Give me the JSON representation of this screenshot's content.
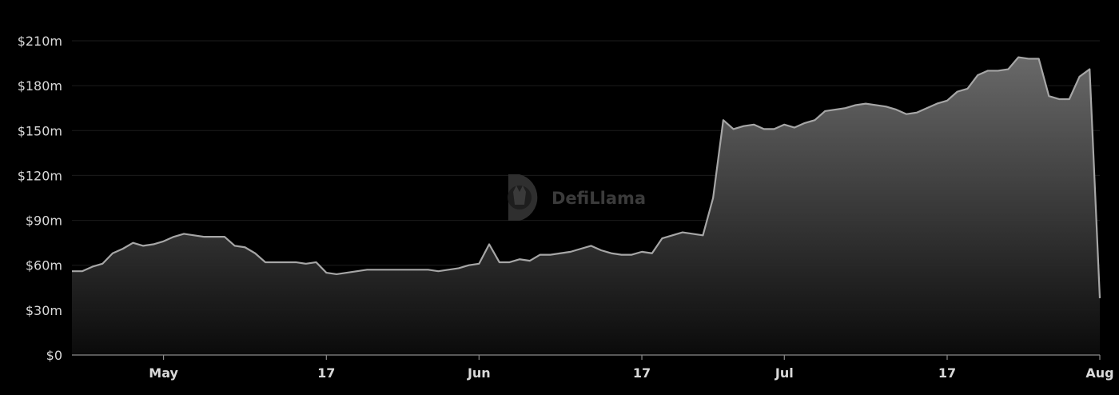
{
  "watermark": {
    "brand_text": "DefiLlama"
  },
  "colors": {
    "background": "#000000",
    "line": "#a6a6a6",
    "area_top": "#6e6e6e",
    "area_bottom": "#0b0b0b",
    "grid": "#1c1c1c",
    "text": "#d9d9d9"
  },
  "chart_data": {
    "type": "area",
    "title": "",
    "xlabel": "",
    "ylabel": "",
    "grid": "horizontal",
    "legend": "none",
    "y_unit": "USD (millions)",
    "ylim": [
      0,
      210
    ],
    "y_ticks": [
      {
        "value": 0,
        "label": "$0"
      },
      {
        "value": 30,
        "label": "$30m"
      },
      {
        "value": 60,
        "label": "$60m"
      },
      {
        "value": 90,
        "label": "$90m"
      },
      {
        "value": 120,
        "label": "$120m"
      },
      {
        "value": 150,
        "label": "$150m"
      },
      {
        "value": 180,
        "label": "$180m"
      },
      {
        "value": 210,
        "label": "$210m"
      }
    ],
    "xlim": [
      "2023-04-22",
      "2023-08-01"
    ],
    "x_ticks": [
      {
        "date": "2023-05-01",
        "label": "May"
      },
      {
        "date": "2023-05-17",
        "label": "17"
      },
      {
        "date": "2023-06-01",
        "label": "Jun"
      },
      {
        "date": "2023-06-17",
        "label": "17"
      },
      {
        "date": "2023-07-01",
        "label": "Jul"
      },
      {
        "date": "2023-07-17",
        "label": "17"
      },
      {
        "date": "2023-08-01",
        "label": "Aug"
      }
    ],
    "series": [
      {
        "x": [
          "2023-04-22",
          "2023-04-23",
          "2023-04-24",
          "2023-04-25",
          "2023-04-26",
          "2023-04-27",
          "2023-04-28",
          "2023-04-29",
          "2023-04-30",
          "2023-05-01",
          "2023-05-02",
          "2023-05-03",
          "2023-05-04",
          "2023-05-05",
          "2023-05-06",
          "2023-05-07",
          "2023-05-08",
          "2023-05-09",
          "2023-05-10",
          "2023-05-11",
          "2023-05-12",
          "2023-05-13",
          "2023-05-14",
          "2023-05-15",
          "2023-05-16",
          "2023-05-17",
          "2023-05-18",
          "2023-05-19",
          "2023-05-20",
          "2023-05-21",
          "2023-05-22",
          "2023-05-23",
          "2023-05-24",
          "2023-05-25",
          "2023-05-26",
          "2023-05-27",
          "2023-05-28",
          "2023-05-29",
          "2023-05-30",
          "2023-05-31",
          "2023-06-01",
          "2023-06-02",
          "2023-06-03",
          "2023-06-04",
          "2023-06-05",
          "2023-06-06",
          "2023-06-07",
          "2023-06-08",
          "2023-06-09",
          "2023-06-10",
          "2023-06-11",
          "2023-06-12",
          "2023-06-13",
          "2023-06-14",
          "2023-06-15",
          "2023-06-16",
          "2023-06-17",
          "2023-06-18",
          "2023-06-19",
          "2023-06-20",
          "2023-06-21",
          "2023-06-22",
          "2023-06-23",
          "2023-06-24",
          "2023-06-25",
          "2023-06-26",
          "2023-06-27",
          "2023-06-28",
          "2023-06-29",
          "2023-06-30",
          "2023-07-01",
          "2023-07-02",
          "2023-07-03",
          "2023-07-04",
          "2023-07-05",
          "2023-07-06",
          "2023-07-07",
          "2023-07-08",
          "2023-07-09",
          "2023-07-10",
          "2023-07-11",
          "2023-07-12",
          "2023-07-13",
          "2023-07-14",
          "2023-07-15",
          "2023-07-16",
          "2023-07-17",
          "2023-07-18",
          "2023-07-19",
          "2023-07-20",
          "2023-07-21",
          "2023-07-22",
          "2023-07-23",
          "2023-07-24",
          "2023-07-25",
          "2023-07-26",
          "2023-07-27",
          "2023-07-28",
          "2023-07-29",
          "2023-07-30",
          "2023-07-31",
          "2023-08-01"
        ],
        "values": [
          56,
          56,
          59,
          61,
          68,
          71,
          75,
          73,
          74,
          76,
          79,
          81,
          80,
          79,
          79,
          79,
          73,
          72,
          68,
          62,
          62,
          62,
          62,
          61,
          62,
          55,
          54,
          55,
          56,
          57,
          57,
          57,
          57,
          57,
          57,
          57,
          56,
          57,
          58,
          60,
          61,
          74,
          62,
          62,
          64,
          63,
          67,
          67,
          68,
          69,
          71,
          73,
          70,
          68,
          67,
          67,
          69,
          68,
          78,
          80,
          82,
          81,
          80,
          105,
          157,
          151,
          153,
          154,
          151,
          151,
          154,
          152,
          155,
          157,
          163,
          164,
          165,
          167,
          168,
          167,
          166,
          164,
          161,
          162,
          165,
          168,
          170,
          176,
          178,
          187,
          190,
          190,
          191,
          199,
          198,
          198,
          173,
          171,
          171,
          186,
          191,
          38
        ]
      }
    ]
  }
}
